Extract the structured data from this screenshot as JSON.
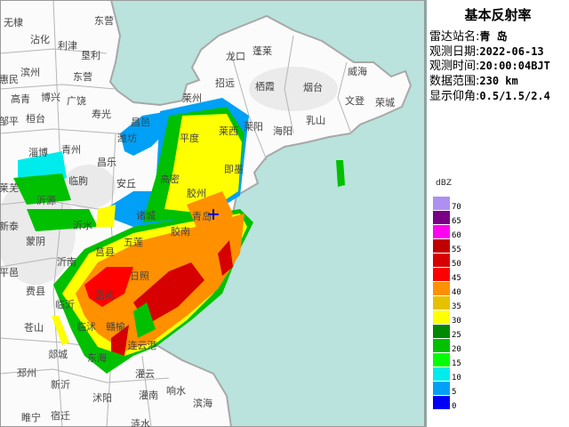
{
  "panel": {
    "title": "基本反射率",
    "rows": [
      {
        "label": "雷达站名:",
        "value": "青 岛"
      },
      {
        "label": "观测日期:",
        "value": "2022-06-13"
      },
      {
        "label": "观测时间:",
        "value": "20:00:04BJT"
      },
      {
        "label": "数据范围:",
        "value": "230 km"
      },
      {
        "label": "显示仰角:",
        "value": "0.5/1.5/2.4"
      }
    ]
  },
  "legend": {
    "unit": "dBZ",
    "items": [
      {
        "label": "70",
        "color": "#ad90f0"
      },
      {
        "label": "65",
        "color": "#780084"
      },
      {
        "label": "60",
        "color": "#ff00f0"
      },
      {
        "label": "55",
        "color": "#c00000"
      },
      {
        "label": "50",
        "color": "#d60000"
      },
      {
        "label": "45",
        "color": "#ff0000"
      },
      {
        "label": "40",
        "color": "#ff9000"
      },
      {
        "label": "35",
        "color": "#e7c000"
      },
      {
        "label": "30",
        "color": "#ffff00"
      },
      {
        "label": "25",
        "color": "#008800"
      },
      {
        "label": "20",
        "color": "#00c000"
      },
      {
        "label": "15",
        "color": "#00ff00"
      },
      {
        "label": "10",
        "color": "#00ecec"
      },
      {
        "label": "5",
        "color": "#00a0f6"
      },
      {
        "label": "0",
        "color": "#0000f6"
      }
    ]
  },
  "map": {
    "sea_color": "#b9e3dc",
    "station_marker": "plus-icon",
    "cities": [
      "无棣",
      "沾化",
      "利津",
      "东营",
      "垦利",
      "滨州",
      "东营",
      "惠民",
      "高青",
      "博兴",
      "广饶",
      "寿光",
      "邹平",
      "桓台",
      "淄博",
      "青州",
      "昌乐",
      "临朐",
      "莱芜",
      "沂源",
      "昌邑",
      "潍坊",
      "安丘",
      "莱州",
      "平度",
      "高密",
      "胶州",
      "龙口",
      "蓬莱",
      "招远",
      "栖霞",
      "烟台",
      "威海",
      "文登",
      "荣城",
      "莱阳",
      "海阳",
      "乳山",
      "莱西",
      "即墨",
      "青岛",
      "诸城",
      "胶南",
      "五莲",
      "莒县",
      "新泰",
      "沂水",
      "蒙阴",
      "沂南",
      "平邑",
      "日照",
      "费县",
      "莒南",
      "临沂",
      "苍山",
      "临沭",
      "赣榆",
      "连云港",
      "郯城",
      "东海",
      "邳州",
      "灌云",
      "新沂",
      "沭阳",
      "灌南",
      "响水",
      "滨海",
      "睢宁",
      "宿迁",
      "涟水"
    ]
  }
}
